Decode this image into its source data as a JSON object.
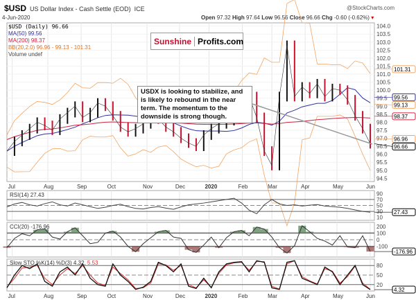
{
  "header": {
    "symbol": "$USD",
    "name": "US Dollar Index - Cash Settle (EOD)",
    "exchange": "ICE",
    "date": "4-Jun-2020",
    "brand": "@StockCharts.com",
    "open_label": "Open",
    "open": "97.32",
    "high_label": "High",
    "high": "97.64",
    "low_label": "Low",
    "low": "96.56",
    "close_label": "Close",
    "close": "96.66",
    "chg_label": "Chg",
    "chg": "-0.60 (-0.62%)"
  },
  "legend": {
    "price": "$USD (Daily) 96.66",
    "ma50": "MA(50) 99.56",
    "ma200": "MA(200) 98.37",
    "bb": "BB(20,2.0) 96.96 - 99.13 - 101.31",
    "volume": "Volume undef"
  },
  "logo": {
    "part1": "Sunshine",
    "part2": "Profits.com"
  },
  "annotation": "USDX is looking to stabilize, and is likely to rebound in the near term. The momentum to the downside is strong though.",
  "colors": {
    "price": "#c8102e",
    "ma50": "#3030a0",
    "ma200": "#d02040",
    "bb": "#f4a460",
    "cci_pos": "#4a7a4a",
    "cci_neg": "#8b4040",
    "sto_d": "#e03030"
  },
  "chart_data": {
    "type": "line",
    "title": "$USD US Dollar Index - Cash Settle (EOD)",
    "x_unit": "week index (Jul 2019 - 4 Jun 2020)",
    "month_ticks": [
      {
        "label": "Jul",
        "week": 0.7
      },
      {
        "label": "Aug",
        "week": 5.4
      },
      {
        "label": "Sep",
        "week": 9.8
      },
      {
        "label": "Oct",
        "week": 13.8
      },
      {
        "label": "Nov",
        "week": 18.5
      },
      {
        "label": "Dec",
        "week": 22.8
      },
      {
        "label": "2020",
        "week": 26.7
      },
      {
        "label": "Feb",
        "week": 31.1
      },
      {
        "label": "Mar",
        "week": 35
      },
      {
        "label": "Apr",
        "week": 39.4
      },
      {
        "label": "May",
        "week": 43.6
      },
      {
        "label": "Jun",
        "week": 48
      }
    ],
    "price": {
      "ylim": [
        94.3,
        104.2
      ],
      "yticks": [
        "104.0",
        "103.5",
        "103.0",
        "102.5",
        "102.0",
        "101.5",
        "101.0",
        "100.5",
        "100.0",
        "99.5",
        "99.0",
        "98.5",
        "98.0",
        "97.5",
        "97.0",
        "96.5",
        "96.0",
        "95.5",
        "95.0",
        "94.5"
      ],
      "values": [
        96.2,
        96.8,
        97.2,
        97.6,
        98.0,
        97.8,
        97.5,
        98.2,
        98.6,
        99.0,
        98.3,
        98.6,
        99.2,
        99.0,
        98.4,
        97.7,
        97.4,
        97.6,
        97.9,
        98.3,
        98.2,
        97.7,
        97.4,
        97.0,
        96.7,
        96.5,
        97.2,
        97.6,
        97.9,
        98.1,
        98.7,
        99.3,
        99.6,
        98.3,
        96.2,
        95.3,
        99.6,
        102.8,
        99.6,
        100.2,
        99.8,
        100.4,
        99.6,
        100.1,
        100.0,
        99.4,
        98.4,
        97.6,
        96.66
      ],
      "labels": {
        "bb_upper": "101.31",
        "ma50": "99.56",
        "bb_mid": "99.13",
        "ma200": "98.37",
        "bb_lower": "96.96",
        "close": "96.66"
      }
    },
    "rsi": {
      "name": "RSI(14) 27.43",
      "yticks": [
        "90",
        "70",
        "50",
        "30",
        "10"
      ],
      "last": "27.43",
      "values": [
        45,
        55,
        60,
        52,
        48,
        56,
        62,
        52,
        48,
        58,
        52,
        46,
        40,
        44,
        50,
        54,
        46,
        40,
        38,
        43,
        46,
        41,
        37,
        45,
        52,
        55,
        58,
        62,
        66,
        70,
        74,
        58,
        34,
        22,
        52,
        70,
        55,
        50,
        52,
        48,
        51,
        53,
        48,
        46,
        44,
        40,
        35,
        30,
        27.43
      ]
    },
    "cci": {
      "name": "CCI(20) -176.96",
      "yticks": [
        "200",
        "100",
        "0",
        "-100"
      ],
      "last": "-176.96",
      "values": [
        -120,
        20,
        90,
        60,
        150,
        160,
        40,
        10,
        120,
        180,
        60,
        -60,
        -40,
        100,
        130,
        40,
        -100,
        -180,
        -60,
        30,
        120,
        140,
        40,
        20,
        -150,
        -190,
        -80,
        40,
        -120,
        30,
        120,
        140,
        60,
        190,
        160,
        40,
        -120,
        -200,
        -90,
        210,
        120,
        20,
        -20,
        -80,
        60,
        -110,
        -120,
        60,
        -176.96
      ]
    },
    "sto": {
      "name": "Slow STO %K(14) %D(3) 4.32,",
      "d_value": "5.53",
      "yticks": [
        "80",
        "50",
        "20"
      ],
      "last": "4.32",
      "k": [
        10,
        50,
        80,
        70,
        85,
        30,
        15,
        60,
        75,
        50,
        85,
        40,
        20,
        15,
        85,
        50,
        30,
        5,
        12,
        30,
        90,
        80,
        60,
        85,
        15,
        8,
        40,
        10,
        60,
        85,
        90,
        92,
        60,
        95,
        90,
        10,
        5,
        90,
        95,
        40,
        30,
        20,
        75,
        60,
        20,
        50,
        80,
        20,
        4.32
      ],
      "d": [
        12,
        40,
        72,
        75,
        80,
        40,
        20,
        50,
        70,
        55,
        80,
        50,
        25,
        18,
        75,
        55,
        35,
        8,
        10,
        25,
        85,
        82,
        65,
        80,
        20,
        10,
        35,
        12,
        55,
        82,
        88,
        90,
        65,
        92,
        92,
        15,
        6,
        85,
        95,
        45,
        32,
        22,
        70,
        62,
        25,
        45,
        78,
        25,
        5.53
      ]
    }
  }
}
